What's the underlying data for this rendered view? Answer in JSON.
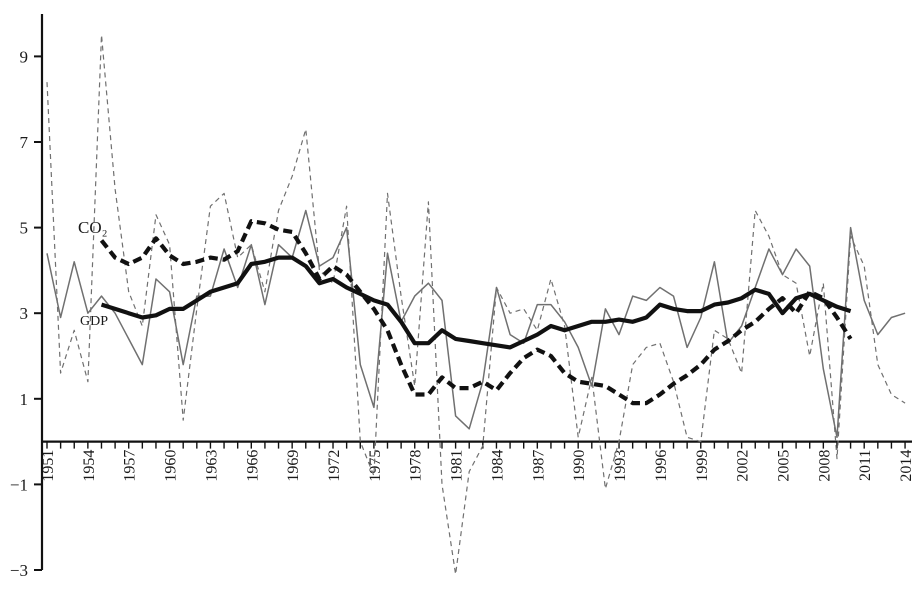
{
  "chart_data": {
    "type": "line",
    "ylim": [
      -3,
      10
    ],
    "xlim": [
      1950.5,
      2014.5
    ],
    "yticks": [
      -3,
      -1,
      1,
      3,
      5,
      7,
      9
    ],
    "ytick_labels": [
      "−3",
      "−1",
      "1",
      "3",
      "5",
      "7",
      "9"
    ],
    "xticks": [
      1951,
      1954,
      1957,
      1960,
      1963,
      1966,
      1969,
      1972,
      1975,
      1978,
      1981,
      1984,
      1987,
      1990,
      1993,
      1996,
      1999,
      2002,
      2005,
      2008,
      2011,
      2014
    ],
    "xtick_labels": [
      "1951",
      "1954",
      "1957",
      "1960",
      "1963",
      "1966",
      "1969",
      "1972",
      "1975",
      "1978",
      "1981",
      "1984",
      "1987",
      "1990",
      "1993",
      "1996",
      "1999",
      "2002",
      "2005",
      "2008",
      "2011",
      "2014"
    ],
    "labels": {
      "co2": "CO₂",
      "gdp": "GDP"
    },
    "series": [
      {
        "key": "gdp_annual",
        "style": "thin-solid",
        "color": "#707070",
        "x": [
          1951,
          1952,
          1953,
          1954,
          1955,
          1956,
          1957,
          1958,
          1959,
          1960,
          1961,
          1962,
          1963,
          1964,
          1965,
          1966,
          1967,
          1968,
          1969,
          1970,
          1971,
          1972,
          1973,
          1974,
          1975,
          1976,
          1977,
          1978,
          1979,
          1980,
          1981,
          1982,
          1983,
          1984,
          1985,
          1986,
          1987,
          1988,
          1989,
          1990,
          1991,
          1992,
          1993,
          1994,
          1995,
          1996,
          1997,
          1998,
          1999,
          2000,
          2001,
          2002,
          2003,
          2004,
          2005,
          2006,
          2007,
          2008,
          2009,
          2010,
          2011,
          2012,
          2013,
          2014
        ],
        "values": [
          4.4,
          2.9,
          4.2,
          3.0,
          3.4,
          3.0,
          2.4,
          1.8,
          3.8,
          3.5,
          1.8,
          3.4,
          3.4,
          4.5,
          3.6,
          4.6,
          3.2,
          4.6,
          4.3,
          5.4,
          4.1,
          4.3,
          5.0,
          1.8,
          0.8,
          4.4,
          2.8,
          3.4,
          3.7,
          3.3,
          0.6,
          0.3,
          1.4,
          3.6,
          2.5,
          2.3,
          3.2,
          3.2,
          2.8,
          2.2,
          1.3,
          3.1,
          2.5,
          3.4,
          3.3,
          3.6,
          3.4,
          2.2,
          2.9,
          4.2,
          2.3,
          2.7,
          3.6,
          4.5,
          3.9,
          4.5,
          4.1,
          1.7,
          0.1,
          5.0,
          3.3,
          2.5,
          2.9,
          3.0
        ]
      },
      {
        "key": "co2_annual",
        "style": "thin-dashed",
        "color": "#707070",
        "x": [
          1951,
          1952,
          1953,
          1954,
          1955,
          1956,
          1957,
          1958,
          1959,
          1960,
          1961,
          1962,
          1963,
          1964,
          1965,
          1966,
          1967,
          1968,
          1969,
          1970,
          1971,
          1972,
          1973,
          1974,
          1975,
          1976,
          1977,
          1978,
          1979,
          1980,
          1981,
          1982,
          1983,
          1984,
          1985,
          1986,
          1987,
          1988,
          1989,
          1990,
          1991,
          1992,
          1993,
          1994,
          1995,
          1996,
          1997,
          1998,
          1999,
          2000,
          2001,
          2002,
          2003,
          2004,
          2005,
          2006,
          2007,
          2008,
          2009,
          2010,
          2011,
          2012,
          2013,
          2014
        ],
        "values": [
          8.4,
          1.6,
          2.6,
          1.4,
          9.5,
          5.9,
          3.5,
          2.7,
          5.3,
          4.6,
          0.5,
          3.1,
          5.5,
          5.8,
          4.3,
          4.6,
          3.5,
          5.4,
          6.2,
          7.3,
          4.0,
          3.7,
          5.5,
          0.0,
          -0.8,
          5.8,
          3.4,
          1.3,
          5.6,
          -1.0,
          -3.1,
          -0.7,
          -0.1,
          3.6,
          3.0,
          3.1,
          2.6,
          3.8,
          2.7,
          0.1,
          1.5,
          -1.1,
          0.0,
          1.8,
          2.2,
          2.3,
          1.4,
          0.1,
          0.0,
          2.6,
          2.4,
          1.6,
          5.4,
          4.8,
          3.9,
          3.7,
          2.0,
          3.7,
          -0.4,
          4.8,
          4.1,
          1.8,
          1.1,
          0.9
        ]
      },
      {
        "key": "gdp_trend",
        "style": "thick-solid",
        "color": "#111111",
        "x": [
          1955,
          1956,
          1957,
          1958,
          1959,
          1960,
          1961,
          1962,
          1963,
          1964,
          1965,
          1966,
          1967,
          1968,
          1969,
          1970,
          1971,
          1972,
          1973,
          1974,
          1975,
          1976,
          1977,
          1978,
          1979,
          1980,
          1981,
          1982,
          1983,
          1984,
          1985,
          1986,
          1987,
          1988,
          1989,
          1990,
          1991,
          1992,
          1993,
          1994,
          1995,
          1996,
          1997,
          1998,
          1999,
          2000,
          2001,
          2002,
          2003,
          2004,
          2005,
          2006,
          2007,
          2008,
          2009,
          2010
        ],
        "values": [
          3.2,
          3.1,
          3.0,
          2.9,
          2.95,
          3.1,
          3.1,
          3.3,
          3.5,
          3.6,
          3.7,
          4.15,
          4.2,
          4.3,
          4.3,
          4.1,
          3.7,
          3.8,
          3.6,
          3.45,
          3.3,
          3.2,
          2.8,
          2.3,
          2.3,
          2.6,
          2.4,
          2.35,
          2.3,
          2.25,
          2.2,
          2.35,
          2.5,
          2.7,
          2.6,
          2.7,
          2.8,
          2.8,
          2.85,
          2.8,
          2.9,
          3.2,
          3.1,
          3.05,
          3.05,
          3.2,
          3.25,
          3.35,
          3.55,
          3.45,
          3.0,
          3.35,
          3.45,
          3.3,
          3.15,
          3.05
        ]
      },
      {
        "key": "co2_trend",
        "style": "thick-dashed",
        "color": "#111111",
        "x": [
          1955,
          1956,
          1957,
          1958,
          1959,
          1960,
          1961,
          1962,
          1963,
          1964,
          1965,
          1966,
          1967,
          1968,
          1969,
          1970,
          1971,
          1972,
          1973,
          1974,
          1975,
          1976,
          1977,
          1978,
          1979,
          1980,
          1981,
          1982,
          1983,
          1984,
          1985,
          1986,
          1987,
          1988,
          1989,
          1990,
          1991,
          1992,
          1993,
          1994,
          1995,
          1996,
          1997,
          1998,
          1999,
          2000,
          2001,
          2002,
          2003,
          2004,
          2005,
          2006,
          2007,
          2008,
          2009,
          2010
        ],
        "values": [
          4.7,
          4.3,
          4.15,
          4.3,
          4.75,
          4.35,
          4.15,
          4.2,
          4.3,
          4.25,
          4.45,
          5.15,
          5.1,
          4.95,
          4.9,
          4.4,
          3.8,
          4.1,
          3.9,
          3.5,
          3.1,
          2.6,
          1.8,
          1.1,
          1.1,
          1.5,
          1.25,
          1.25,
          1.4,
          1.2,
          1.6,
          1.95,
          2.15,
          2.0,
          1.6,
          1.4,
          1.35,
          1.3,
          1.1,
          0.9,
          0.9,
          1.1,
          1.35,
          1.55,
          1.8,
          2.15,
          2.35,
          2.6,
          2.8,
          3.1,
          3.35,
          3.0,
          3.5,
          3.35,
          2.9,
          2.4
        ]
      }
    ]
  }
}
